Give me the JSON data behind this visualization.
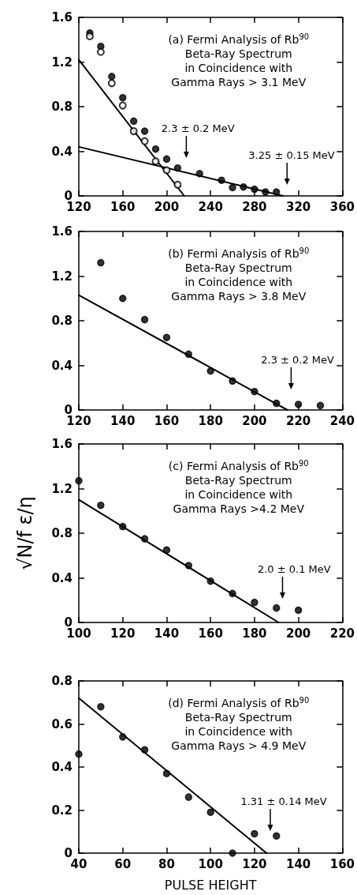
{
  "chart_data": [
    {
      "type": "scatter",
      "title": "(a) Fermi Analysis of Rb$^{90}$\nBeta-Ray Spectrum\nin Coincidence with\nGamma Rays > 3.1 MeV",
      "xlim": [
        120,
        360
      ],
      "xticks": [
        120,
        160,
        200,
        240,
        280,
        320,
        360
      ],
      "ylim": [
        0,
        1.6
      ],
      "yticks": [
        0,
        0.4,
        0.8,
        1.2,
        1.6
      ],
      "marker": "circle",
      "grid": false,
      "legend": false,
      "series": [
        {
          "color": "#000000",
          "x": [
            130,
            140,
            150,
            160,
            170,
            180,
            190,
            200,
            210,
            230,
            250,
            260,
            270,
            280,
            290,
            300
          ],
          "values": [
            1.46,
            1.34,
            1.07,
            0.88,
            0.67,
            0.58,
            0.42,
            0.33,
            0.25,
            0.2,
            0.14,
            0.075,
            0.08,
            0.06,
            0.035,
            0.035
          ]
        },
        {
          "color": "#000000",
          "marker": "open circle",
          "x": [
            130,
            140,
            150,
            160,
            170,
            180,
            190,
            200,
            210
          ],
          "values": [
            1.43,
            1.29,
            1.01,
            0.81,
            0.58,
            0.49,
            0.31,
            0.23,
            0.1
          ]
        },
        {
          "type": "line",
          "color": "#000000",
          "marker": "none",
          "x": [
            120,
            216
          ],
          "values": [
            1.22,
            0
          ]
        },
        {
          "type": "line",
          "color": "#000000",
          "marker": "none",
          "x": [
            120,
            306
          ],
          "values": [
            0.44,
            0
          ]
        }
      ],
      "annotations": [
        "2.3 ± 0.2 MeV",
        "3.25 ± 0.15 MeV"
      ]
    },
    {
      "type": "scatter",
      "title": "(b) Fermi Analysis of Rb$^{90}$\nBeta-Ray Spectrum\nin Coincidence with\nGamma Rays > 3.8 MeV",
      "xlim": [
        120,
        240
      ],
      "xticks": [
        120,
        140,
        160,
        180,
        200,
        220,
        240
      ],
      "ylim": [
        0,
        1.6
      ],
      "yticks": [
        0,
        0.4,
        0.8,
        1.2,
        1.6
      ],
      "marker": "circle",
      "grid": false,
      "legend": false,
      "series": [
        {
          "color": "#000000",
          "x": [
            130,
            140,
            150,
            160,
            170,
            180,
            190,
            200,
            210,
            220,
            230
          ],
          "values": [
            1.32,
            1.0,
            0.81,
            0.65,
            0.5,
            0.35,
            0.26,
            0.165,
            0.06,
            0.05,
            0.04
          ]
        },
        {
          "type": "line",
          "color": "#000000",
          "marker": "none",
          "x": [
            120,
            215
          ],
          "values": [
            1.03,
            0
          ]
        }
      ],
      "annotations": [
        "2.3 ± 0.2 MeV"
      ]
    },
    {
      "type": "scatter",
      "title": "(c) Fermi Analysis of Rb$^{90}$\nBeta-Ray Spectrum\nin Coincidence with\nGamma Rays >4.2 MeV",
      "ylabel": "√N/f ε/η",
      "xlim": [
        100,
        220
      ],
      "xticks": [
        100,
        120,
        140,
        160,
        180,
        200,
        220
      ],
      "ylim": [
        0,
        1.6
      ],
      "yticks": [
        0,
        0.4,
        0.8,
        1.2,
        1.6
      ],
      "marker": "circle",
      "grid": false,
      "legend": false,
      "series": [
        {
          "color": "#000000",
          "x": [
            100,
            110,
            120,
            130,
            140,
            150,
            160,
            170,
            180,
            190,
            200
          ],
          "values": [
            1.27,
            1.05,
            0.86,
            0.75,
            0.65,
            0.51,
            0.37,
            0.26,
            0.18,
            0.13,
            0.11
          ]
        },
        {
          "type": "line",
          "color": "#000000",
          "marker": "none",
          "x": [
            100,
            191
          ],
          "values": [
            1.1,
            0
          ]
        }
      ],
      "annotations": [
        "2.0 ± 0.1 MeV"
      ]
    },
    {
      "type": "scatter",
      "title": "(d) Fermi Analysis of Rb$^{90}$\nBeta-Ray Spectrum\nin Coincidence with\nGamma Rays > 4.9 MeV",
      "xlabel": "PULSE HEIGHT",
      "xlim": [
        40,
        160
      ],
      "xticks": [
        40,
        60,
        80,
        100,
        120,
        140,
        160
      ],
      "ylim": [
        0,
        0.8
      ],
      "yticks": [
        0,
        0.2,
        0.4,
        0.6,
        0.8
      ],
      "marker": "circle",
      "grid": false,
      "legend": false,
      "series": [
        {
          "color": "#000000",
          "x": [
            40,
            50,
            60,
            70,
            80,
            90,
            100,
            110,
            120,
            130
          ],
          "values": [
            0.46,
            0.68,
            0.54,
            0.48,
            0.37,
            0.26,
            0.19,
            0,
            0.09,
            0.08
          ]
        },
        {
          "type": "line",
          "color": "#000000",
          "marker": "none",
          "x": [
            40,
            125.5
          ],
          "values": [
            0.72,
            0
          ]
        }
      ],
      "annotations": [
        "1.31 ± 0.14 MeV"
      ]
    }
  ]
}
